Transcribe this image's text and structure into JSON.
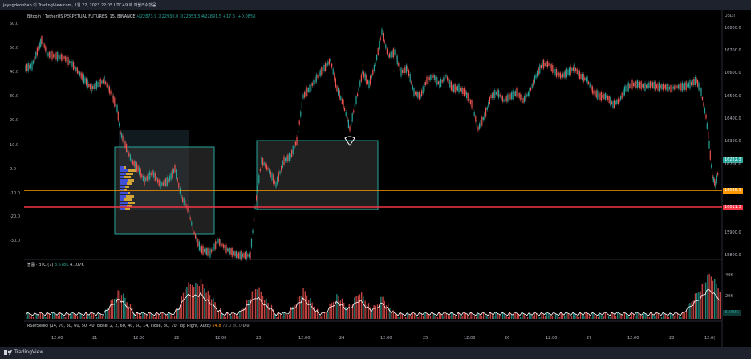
{
  "header": {
    "author_text": "jeyugdeopbab 이 TradingView.com, 1월 22, 2023 22:05 UTC+9 에 퍼블리쉬했음"
  },
  "legend": {
    "symbol": "Bitcoin / TetherUS PERPETUAL FUTURES, 15, BINANCE",
    "open": "시22873.9",
    "high": "고22930.0",
    "low": "저22853.3",
    "close": "종22891.5",
    "change": "+17.6 (+0.08%)"
  },
  "currency": "USDT",
  "left_axis": [
    "60.0",
    "50.0",
    "40.0",
    "30.0",
    "20.0",
    "10.0",
    "0.0",
    "-10.0",
    "-20.0",
    "-30.0"
  ],
  "right_axis": [
    "16800.0",
    "16700.0",
    "16600.0",
    "16500.0",
    "16400.0",
    "16300.0",
    "16200.0",
    "15900.0",
    "15800.0"
  ],
  "price_tags": {
    "current": "16222.3",
    "orange": "16085.1",
    "red": "16011.3"
  },
  "volume": {
    "label": "볼륨 · BTC (7)",
    "v1": "3.578K",
    "v2": "4.107K",
    "scale": "40K",
    "scale2": "20K",
    "tag": "3.559K"
  },
  "rsi": {
    "label": "RSI(fSeok) (14, 70, 30, 60, 50, 40, close, 2, 2, 60, 40, 50, 14, close, 30, 70, Top Right, Auto)",
    "v1": "54.8",
    "v2": "70.0",
    "v3": "30.0",
    "v4": "0",
    "v5": "0"
  },
  "time_axis": [
    "12:00",
    "21",
    "12:00",
    "22",
    "12:00",
    "23",
    "12:00",
    "24",
    "12:00",
    "25",
    "12:00",
    "26",
    "12:00",
    "27",
    "12:00",
    "28",
    "12:0("
  ],
  "footer": {
    "brand": "TradingView"
  },
  "colors": {
    "up": "#26a69a",
    "down": "#ef5350",
    "orange": "#ff9800",
    "red": "#f23645",
    "box_border": "#26a69a",
    "bg": "#000000"
  }
}
